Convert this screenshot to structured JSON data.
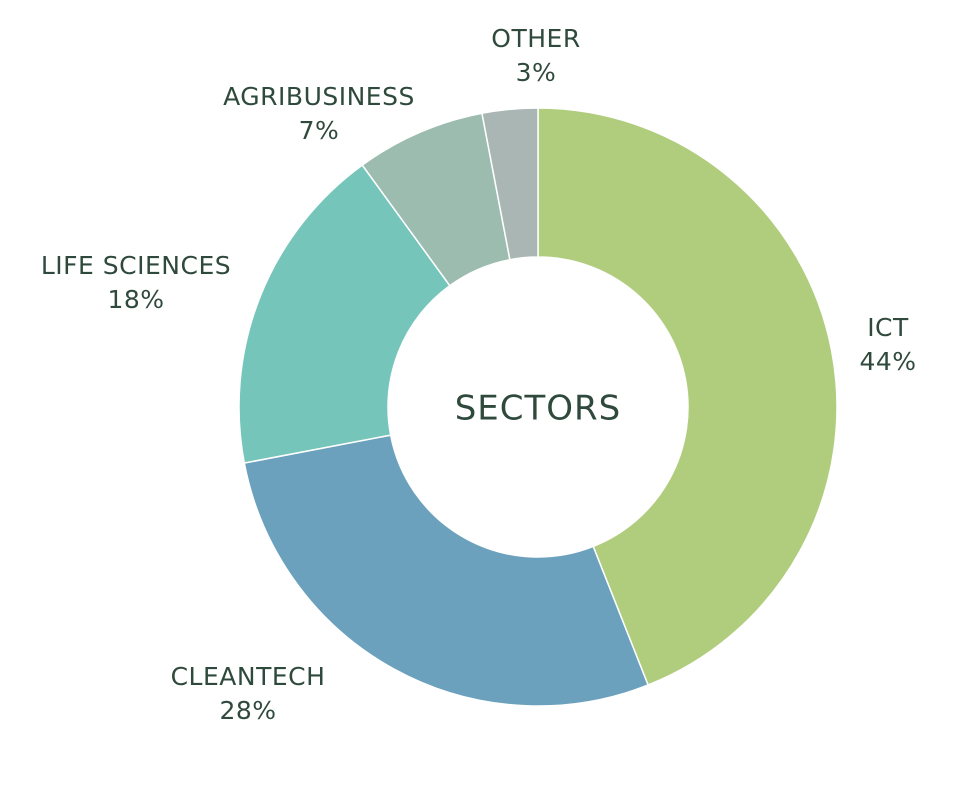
{
  "chart_data": {
    "type": "pie",
    "variant": "donut",
    "center_label": "SECTORS",
    "slices": [
      {
        "label": "ICT",
        "value": 44,
        "value_label": "44%",
        "color": "#b0cd7e"
      },
      {
        "label": "CLEANTECH",
        "value": 28,
        "value_label": "28%",
        "color": "#6ba1bd"
      },
      {
        "label": "LIFE SCIENCES",
        "value": 18,
        "value_label": "18%",
        "color": "#76c5bb"
      },
      {
        "label": "AGRIBUSINESS",
        "value": 7,
        "value_label": "7%",
        "color": "#9cbcb0"
      },
      {
        "label": "OTHER",
        "value": 3,
        "value_label": "3%",
        "color": "#a9b6b3"
      }
    ],
    "start_angle_deg": 0,
    "direction": "clockwise",
    "label_color": "#2f4a3d"
  }
}
